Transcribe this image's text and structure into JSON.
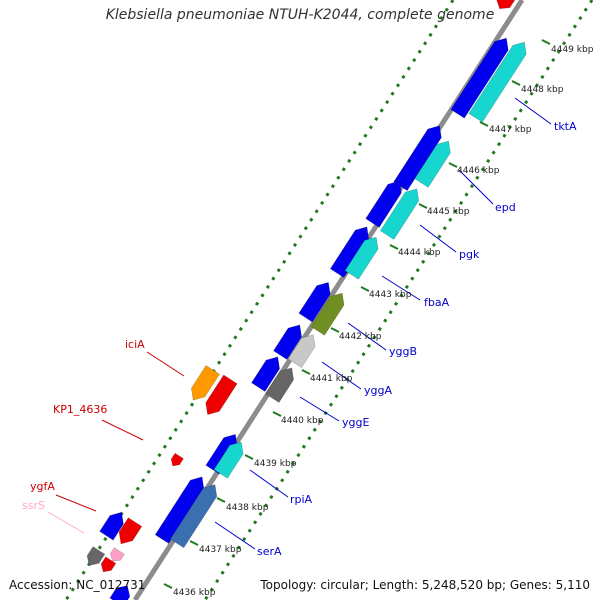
{
  "title": "Klebsiella pneumoniae NTUH-K2044, complete genome",
  "accession_text": "Accession: NC_012731",
  "summary_text": "Topology: circular; Length: 5,248,520 bp; Genes: 5,110",
  "colors": {
    "backbone": "#8c8c8c",
    "tick_dots": "#1e7a1e",
    "gene_blue": "#0000ee",
    "gene_cyan": "#17d6d0",
    "gene_red": "#ee0000",
    "gene_orange": "#ff9900",
    "gene_olive": "#6f8f22",
    "gene_silver": "#c8c8c8",
    "gene_gray": "#666666",
    "gene_pink": "#ff9fc8",
    "label_blue": "#0000cc",
    "label_red": "#cc0000",
    "label_pink": "#ffaacc"
  },
  "kbp_ticks": [
    "4436 kbp",
    "4437 kbp",
    "4438 kbp",
    "4439 kbp",
    "4440 kbp",
    "4441 kbp",
    "4442 kbp",
    "4443 kbp",
    "4444 kbp",
    "4445 kbp",
    "4446 kbp",
    "4447 kbp",
    "4448 kbp",
    "4449 kbp"
  ],
  "gene_labels": [
    {
      "text": "tktA",
      "color": "blue"
    },
    {
      "text": "epd",
      "color": "blue"
    },
    {
      "text": "pgk",
      "color": "blue"
    },
    {
      "text": "fbaA",
      "color": "blue"
    },
    {
      "text": "yggB",
      "color": "blue"
    },
    {
      "text": "yggA",
      "color": "blue"
    },
    {
      "text": "yggE",
      "color": "blue"
    },
    {
      "text": "rpiA",
      "color": "blue"
    },
    {
      "text": "serA",
      "color": "blue"
    },
    {
      "text": "iciA",
      "color": "red"
    },
    {
      "text": "KP1_4636",
      "color": "red"
    },
    {
      "text": "ygfA",
      "color": "red"
    },
    {
      "text": "ssrS",
      "color": "pink"
    }
  ]
}
